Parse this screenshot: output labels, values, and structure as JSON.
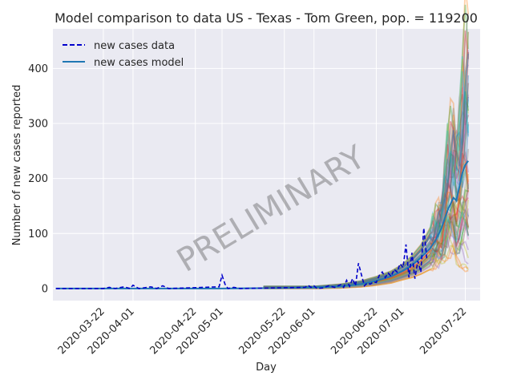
{
  "chart_data": {
    "type": "line",
    "title": "Model comparison to data US - Texas - Tom Green, pop. = 119200",
    "xlabel": "Day",
    "ylabel": "Number of new cases reported",
    "watermark": "PRELIMINARY",
    "x_range": [
      "2020-03-06",
      "2020-07-22"
    ],
    "ylim": [
      -22,
      472
    ],
    "y_ticks": [
      0,
      100,
      200,
      300,
      400
    ],
    "x_ticks": [
      "2020-03-22",
      "2020-04-01",
      "2020-04-22",
      "2020-05-01",
      "2020-05-22",
      "2020-06-01",
      "2020-06-22",
      "2020-07-01",
      "2020-07-22"
    ],
    "grid": true,
    "legend_position": "top-left",
    "colors": {
      "background": "#eaeaf2",
      "grid": "#ffffff",
      "data": "#0000cc",
      "model": "#1f77b4",
      "ensemble": [
        "#1f77b4",
        "#ff7f0e",
        "#2ca02c",
        "#d62728",
        "#9467bd",
        "#8c564b",
        "#e377c2",
        "#7f7f7f",
        "#bcbd22",
        "#17becf"
      ]
    },
    "series": [
      {
        "name": "new cases data",
        "style": "dashed",
        "points": [
          [
            "2020-03-06",
            0
          ],
          [
            "2020-03-22",
            0
          ],
          [
            "2020-03-24",
            2
          ],
          [
            "2020-03-26",
            0
          ],
          [
            "2020-03-29",
            3
          ],
          [
            "2020-03-31",
            0
          ],
          [
            "2020-04-01",
            6
          ],
          [
            "2020-04-03",
            0
          ],
          [
            "2020-04-07",
            3
          ],
          [
            "2020-04-09",
            0
          ],
          [
            "2020-04-11",
            5
          ],
          [
            "2020-04-13",
            0
          ],
          [
            "2020-04-30",
            3
          ],
          [
            "2020-05-01",
            24
          ],
          [
            "2020-05-02",
            8
          ],
          [
            "2020-05-03",
            0
          ],
          [
            "2020-05-05",
            2
          ],
          [
            "2020-05-07",
            0
          ],
          [
            "2020-05-29",
            2
          ],
          [
            "2020-05-30",
            6
          ],
          [
            "2020-05-31",
            2
          ],
          [
            "2020-06-01",
            5
          ],
          [
            "2020-06-02",
            0
          ],
          [
            "2020-06-04",
            1
          ],
          [
            "2020-06-06",
            5
          ],
          [
            "2020-06-08",
            2
          ],
          [
            "2020-06-10",
            7
          ],
          [
            "2020-06-11",
            2
          ],
          [
            "2020-06-12",
            15
          ],
          [
            "2020-06-13",
            4
          ],
          [
            "2020-06-14",
            18
          ],
          [
            "2020-06-15",
            5
          ],
          [
            "2020-06-16",
            46
          ],
          [
            "2020-06-17",
            25
          ],
          [
            "2020-06-18",
            5
          ],
          [
            "2020-06-19",
            10
          ],
          [
            "2020-06-20",
            8
          ],
          [
            "2020-06-21",
            12
          ],
          [
            "2020-06-22",
            11
          ],
          [
            "2020-06-23",
            24
          ],
          [
            "2020-06-24",
            30
          ],
          [
            "2020-06-25",
            20
          ],
          [
            "2020-06-26",
            28
          ],
          [
            "2020-06-27",
            22
          ],
          [
            "2020-06-28",
            35
          ],
          [
            "2020-06-29",
            30
          ],
          [
            "2020-06-30",
            45
          ],
          [
            "2020-07-01",
            38
          ],
          [
            "2020-07-02",
            80
          ],
          [
            "2020-07-03",
            20
          ],
          [
            "2020-07-04",
            65
          ],
          [
            "2020-07-05",
            18
          ],
          [
            "2020-07-06",
            50
          ],
          [
            "2020-07-07",
            30
          ],
          [
            "2020-07-08",
            110
          ],
          [
            "2020-07-09",
            55
          ]
        ]
      },
      {
        "name": "new cases model",
        "style": "solid",
        "points": [
          [
            "2020-03-06",
            0
          ],
          [
            "2020-05-01",
            0
          ],
          [
            "2020-05-22",
            1
          ],
          [
            "2020-06-01",
            2
          ],
          [
            "2020-06-10",
            4
          ],
          [
            "2020-06-17",
            8
          ],
          [
            "2020-06-22",
            14
          ],
          [
            "2020-06-27",
            22
          ],
          [
            "2020-07-01",
            32
          ],
          [
            "2020-07-04",
            42
          ],
          [
            "2020-07-07",
            56
          ],
          [
            "2020-07-10",
            72
          ],
          [
            "2020-07-12",
            88
          ],
          [
            "2020-07-14",
            110
          ],
          [
            "2020-07-16",
            142
          ],
          [
            "2020-07-18",
            165
          ],
          [
            "2020-07-19",
            160
          ],
          [
            "2020-07-20",
            185
          ],
          [
            "2020-07-21",
            210
          ],
          [
            "2020-07-22",
            225
          ],
          [
            "2020-07-23",
            232
          ]
        ]
      }
    ],
    "model_ensemble_envelope": {
      "x": [
        "2020-06-01",
        "2020-06-10",
        "2020-06-17",
        "2020-06-22",
        "2020-06-27",
        "2020-07-01",
        "2020-07-04",
        "2020-07-07",
        "2020-07-10",
        "2020-07-12",
        "2020-07-14",
        "2020-07-16",
        "2020-07-18",
        "2020-07-19",
        "2020-07-20",
        "2020-07-21",
        "2020-07-22",
        "2020-07-23"
      ],
      "low": [
        0,
        1,
        3,
        6,
        10,
        16,
        20,
        26,
        34,
        42,
        50,
        60,
        70,
        50,
        45,
        40,
        35,
        30
      ],
      "high": [
        4,
        8,
        14,
        22,
        32,
        45,
        60,
        80,
        110,
        130,
        150,
        270,
        295,
        270,
        310,
        390,
        445,
        455
      ]
    }
  }
}
